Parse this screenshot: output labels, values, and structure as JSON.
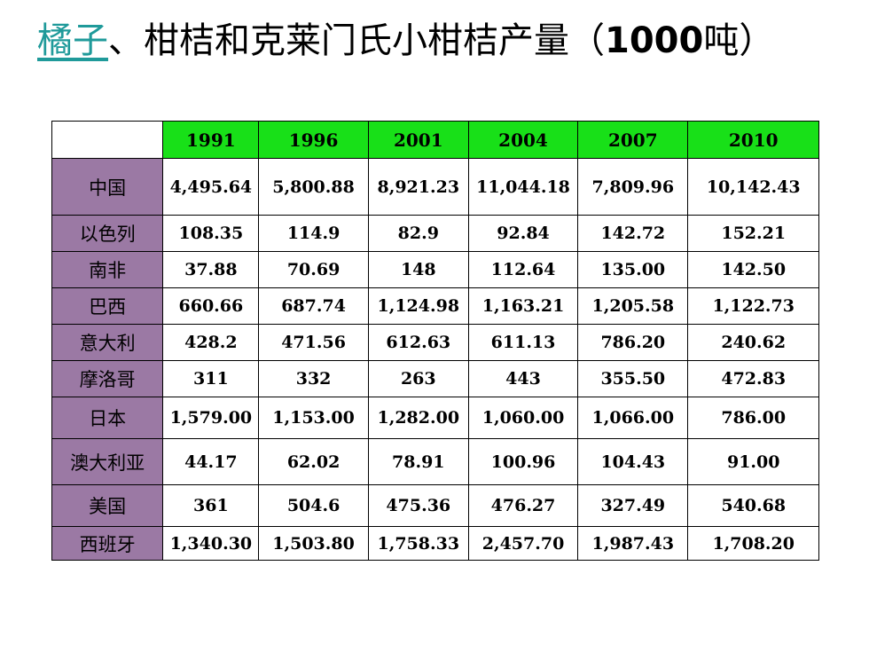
{
  "title": {
    "link_text": "橘子",
    "mid_text": "、柑桔和克莱门氏小柑桔产量（",
    "bold_number": "1000",
    "end_text": "吨）"
  },
  "table": {
    "years": [
      "1991",
      "1996",
      "2001",
      "2004",
      "2007",
      "2010"
    ],
    "rows": [
      {
        "country": "中国",
        "values": [
          "4,495.64",
          "5,800.88",
          "8,921.23",
          "11,044.18",
          "7,809.96",
          "10,142.43"
        ]
      },
      {
        "country": "以色列",
        "values": [
          "108.35",
          "114.9",
          "82.9",
          "92.84",
          "142.72",
          "152.21"
        ]
      },
      {
        "country": "南非",
        "values": [
          "37.88",
          "70.69",
          "148",
          "112.64",
          "135.00",
          "142.50"
        ]
      },
      {
        "country": "巴西",
        "values": [
          "660.66",
          "687.74",
          "1,124.98",
          "1,163.21",
          "1,205.58",
          "1,122.73"
        ]
      },
      {
        "country": "意大利",
        "values": [
          "428.2",
          "471.56",
          "612.63",
          "611.13",
          "786.20",
          "240.62"
        ]
      },
      {
        "country": "摩洛哥",
        "values": [
          "311",
          "332",
          "263",
          "443",
          "355.50",
          "472.83"
        ]
      },
      {
        "country": "日本",
        "values": [
          "1,579.00",
          "1,153.00",
          "1,282.00",
          "1,060.00",
          "1,066.00",
          "786.00"
        ]
      },
      {
        "country": "澳大利亚",
        "values": [
          "44.17",
          "62.02",
          "78.91",
          "100.96",
          "104.43",
          "91.00"
        ]
      },
      {
        "country": "美国",
        "values": [
          "361",
          "504.6",
          "475.36",
          "476.27",
          "327.49",
          "540.68"
        ]
      },
      {
        "country": "西班牙",
        "values": [
          "1,340.30",
          "1,503.80",
          "1,758.33",
          "2,457.70",
          "1,987.43",
          "1,708.20"
        ]
      }
    ]
  },
  "colors": {
    "header_green": "#18e018",
    "country_purple": "#9b79a4",
    "link_teal": "#1f9a9a"
  }
}
